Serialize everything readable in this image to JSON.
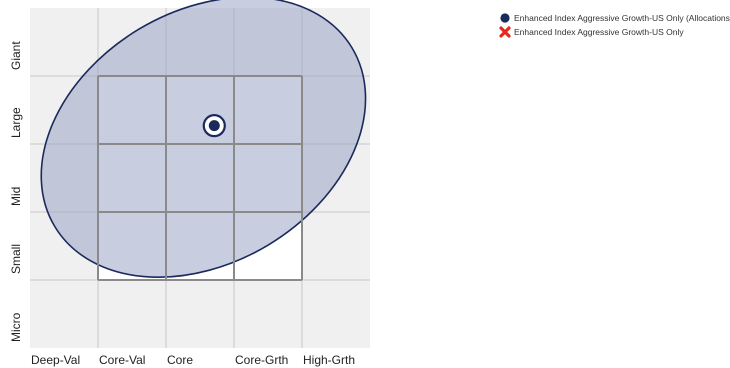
{
  "chart_data": {
    "type": "scatter",
    "x_categories": [
      "Deep-Val",
      "Core-Val",
      "Core",
      "Core-Grth",
      "High-Grth"
    ],
    "y_categories": [
      "Micro",
      "Small",
      "Mid",
      "Large",
      "Giant"
    ],
    "xlim": [
      0,
      5
    ],
    "ylim": [
      0,
      5
    ],
    "style_box": {
      "x": [
        1,
        4
      ],
      "y": [
        1,
        4
      ]
    },
    "series": [
      {
        "name": "Enhanced Index Aggressive Growth-US Only (Allocations)",
        "marker": "circle",
        "color": "#1a2a5c",
        "points": [
          {
            "x": 2.71,
            "y": 3.27
          }
        ]
      },
      {
        "name": "Enhanced Index Aggressive Growth-US Only",
        "marker": "x",
        "color": "#e8261b",
        "points": []
      }
    ],
    "ellipse": {
      "center": {
        "x": 2.55,
        "y": 3.1
      },
      "semi_axis_major": 2.55,
      "semi_axis_minor": 1.85,
      "rotation_deg": 31,
      "fill": "#9aa4c4",
      "stroke": "#1a2a5c"
    },
    "legend_position": "top-right",
    "grid": true
  }
}
